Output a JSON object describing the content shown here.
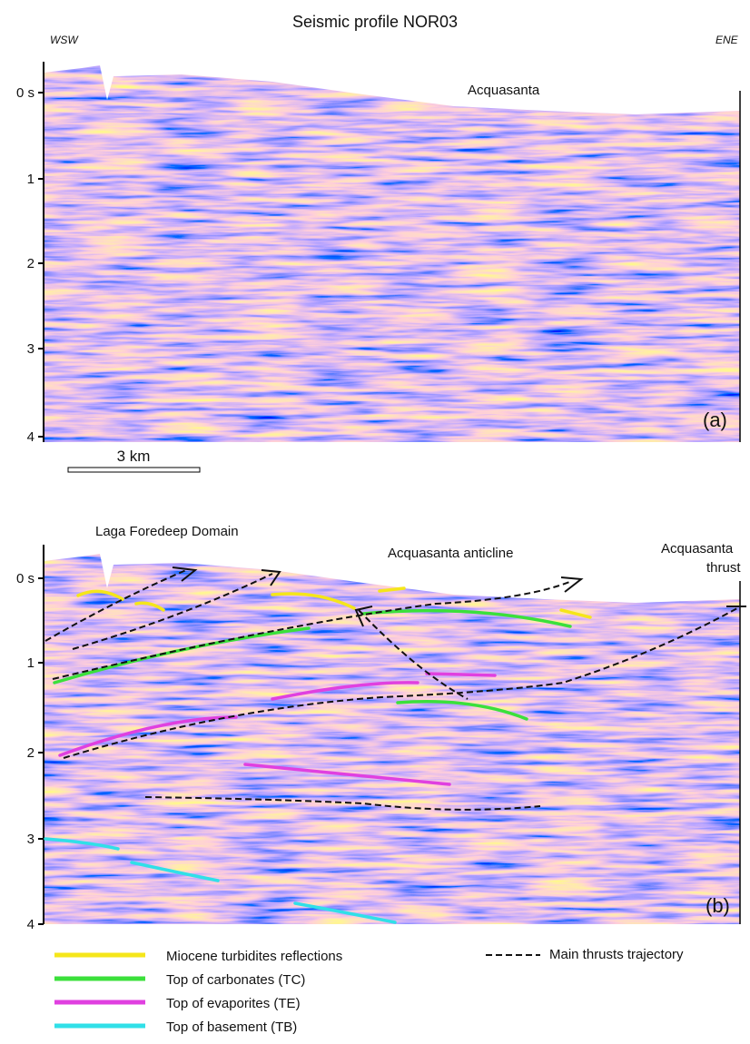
{
  "title": "Seismic profile NOR03",
  "directions": {
    "left": "WSW",
    "right": "ENE"
  },
  "panels": [
    {
      "axis_labels": [
        "0 s",
        "1",
        "2",
        "3",
        "4"
      ],
      "annotations": [
        "Acquasanta"
      ],
      "label": "(a)",
      "scale_bar": "3 km"
    },
    {
      "axis_labels": [
        "0 s",
        "1",
        "2",
        "3",
        "4"
      ],
      "annotations": [
        "Laga Foredeep Domain",
        "Acquasanta anticline",
        "Acquasanta",
        "thrust"
      ],
      "label": "(b)"
    }
  ],
  "legend": [
    "Miocene turbidites reflections",
    "Top of carbonates (TC)",
    "Top of evaporites (TE)",
    "Top of basement (TB)",
    "Main thrusts trajectory"
  ]
}
